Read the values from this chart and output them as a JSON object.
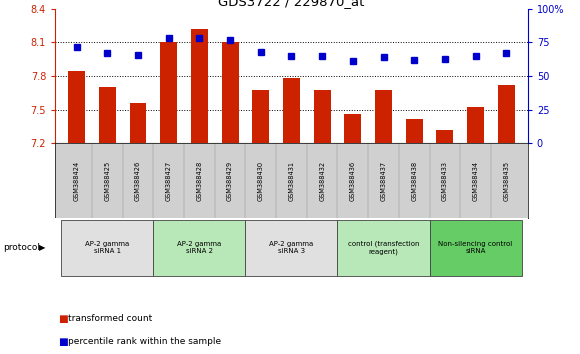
{
  "title": "GDS3722 / 229870_at",
  "samples": [
    "GSM388424",
    "GSM388425",
    "GSM388426",
    "GSM388427",
    "GSM388428",
    "GSM388429",
    "GSM388430",
    "GSM388431",
    "GSM388432",
    "GSM388436",
    "GSM388437",
    "GSM388438",
    "GSM388433",
    "GSM388434",
    "GSM388435"
  ],
  "transformed_count": [
    7.85,
    7.7,
    7.56,
    8.1,
    8.22,
    8.1,
    7.68,
    7.78,
    7.68,
    7.46,
    7.68,
    7.42,
    7.32,
    7.52,
    7.72
  ],
  "percentile_rank": [
    72,
    67,
    66,
    78,
    78,
    77,
    68,
    65,
    65,
    61,
    64,
    62,
    63,
    65,
    67
  ],
  "ylim_left": [
    7.2,
    8.4
  ],
  "ylim_right": [
    0,
    100
  ],
  "yticks_left": [
    7.2,
    7.5,
    7.8,
    8.1,
    8.4
  ],
  "yticks_right": [
    0,
    25,
    50,
    75,
    100
  ],
  "hlines": [
    7.5,
    7.8,
    8.1
  ],
  "bar_color": "#cc2200",
  "dot_color": "#0000cc",
  "bg_color": "#ffffff",
  "groups": [
    {
      "label": "AP-2 gamma\nsiRNA 1",
      "indices": [
        0,
        1,
        2
      ],
      "color": "#e0e0e0"
    },
    {
      "label": "AP-2 gamma\nsiRNA 2",
      "indices": [
        3,
        4,
        5
      ],
      "color": "#b8e8b8"
    },
    {
      "label": "AP-2 gamma\nsiRNA 3",
      "indices": [
        6,
        7,
        8
      ],
      "color": "#e0e0e0"
    },
    {
      "label": "control (transfection\nreagent)",
      "indices": [
        9,
        10,
        11
      ],
      "color": "#b8e8b8"
    },
    {
      "label": "Non-silencing control\nsiRNA",
      "indices": [
        12,
        13,
        14
      ],
      "color": "#66cc66"
    }
  ],
  "legend_tc": "transformed count",
  "legend_pr": "percentile rank within the sample",
  "protocol_label": "protocol",
  "sample_box_color": "#d0d0d0",
  "bar_width": 0.55
}
